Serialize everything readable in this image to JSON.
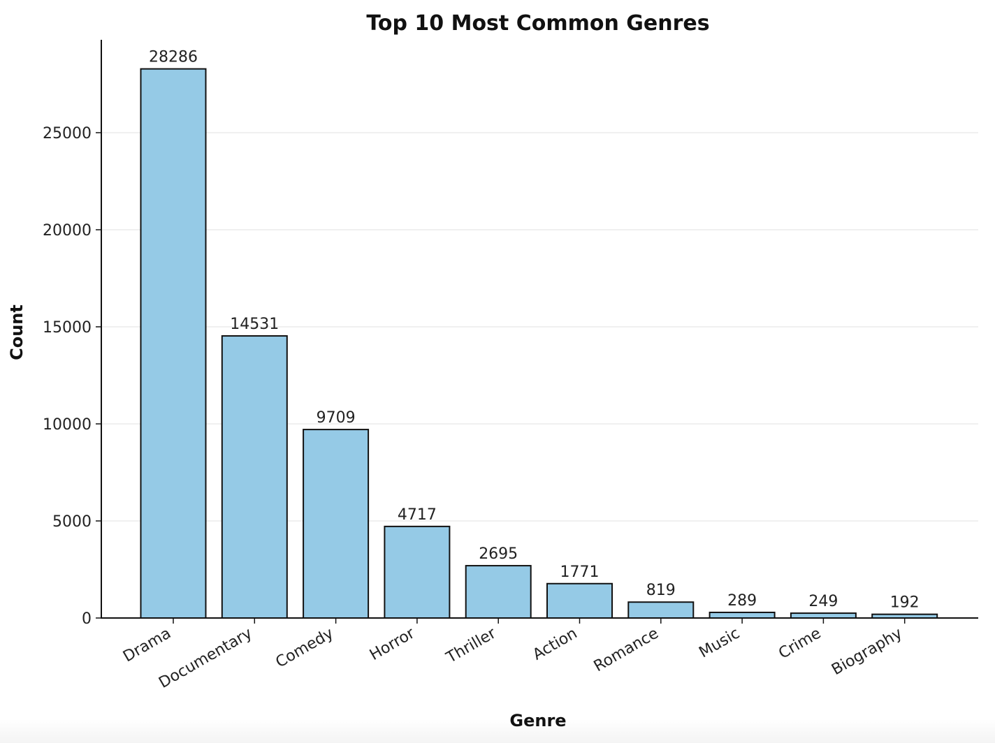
{
  "chart_data": {
    "type": "bar",
    "title": "Top 10 Most Common Genres",
    "xlabel": "Genre",
    "ylabel": "Count",
    "categories": [
      "Drama",
      "Documentary",
      "Comedy",
      "Horror",
      "Thriller",
      "Action",
      "Romance",
      "Music",
      "Crime",
      "Biography"
    ],
    "values": [
      28286,
      14531,
      9709,
      4717,
      2695,
      1771,
      819,
      289,
      249,
      192
    ],
    "data_labels": [
      "28286",
      "14531",
      "9709",
      "4717",
      "2695",
      "1771",
      "819",
      "289",
      "249",
      "192"
    ],
    "yticks": [
      0,
      5000,
      10000,
      15000,
      20000,
      25000
    ],
    "ylim": [
      0,
      29700
    ],
    "grid": "y",
    "bar_color": "#95cae6",
    "edge_color": "#111111",
    "grid_color": "#ebebeb"
  }
}
